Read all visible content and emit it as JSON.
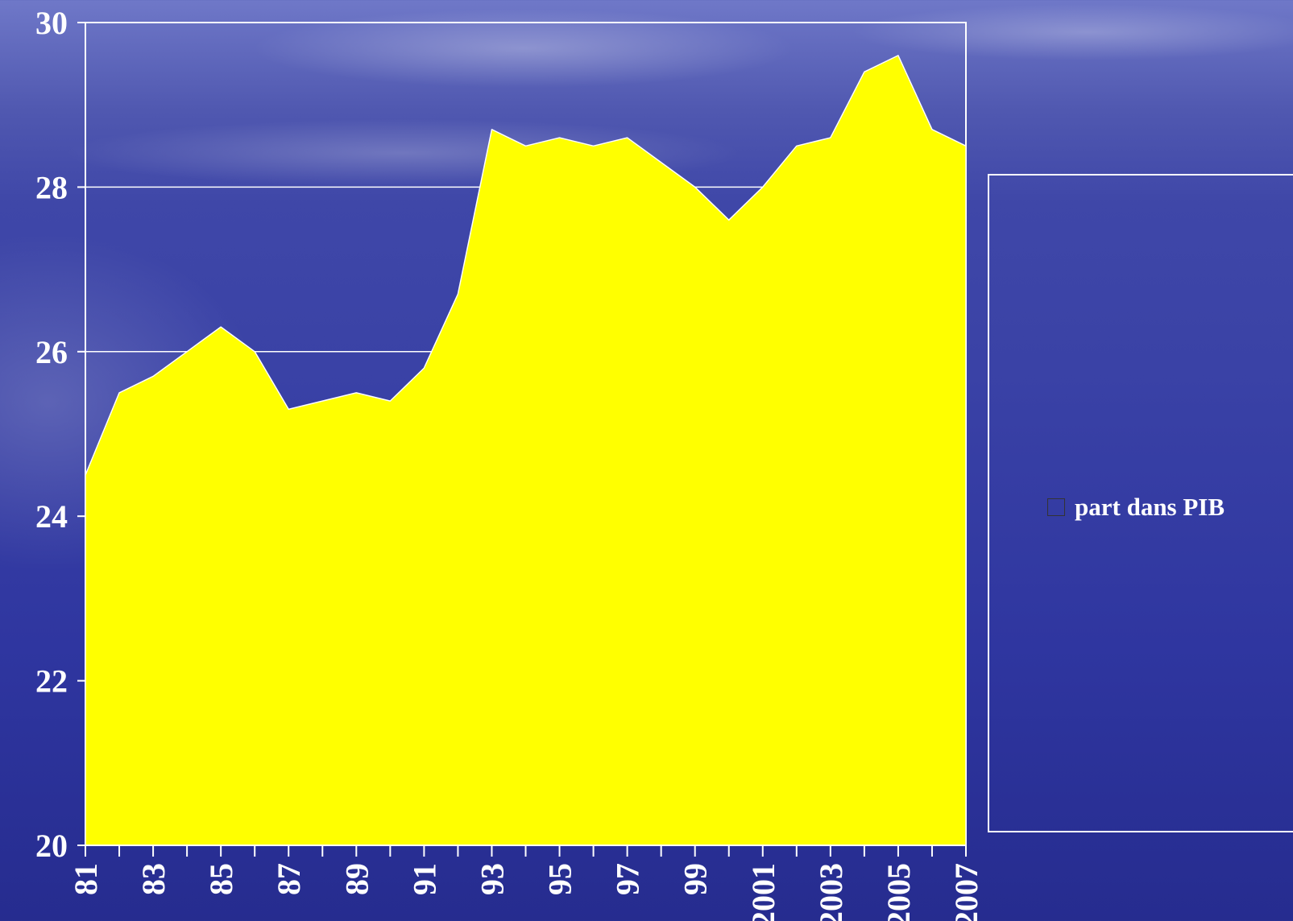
{
  "chart_data": {
    "type": "area",
    "x": [
      "81",
      "82",
      "83",
      "84",
      "85",
      "86",
      "87",
      "88",
      "89",
      "90",
      "91",
      "92",
      "93",
      "94",
      "95",
      "96",
      "97",
      "98",
      "99",
      "2000",
      "2001",
      "2002",
      "2003",
      "2004",
      "2005",
      "2006",
      "2007"
    ],
    "xtick_labels": [
      "81",
      "83",
      "85",
      "87",
      "89",
      "91",
      "93",
      "95",
      "97",
      "99",
      "2001",
      "2003",
      "2005",
      "2007"
    ],
    "series": [
      {
        "name": "part dans PIB",
        "color": "#ffff00",
        "values": [
          24.5,
          25.5,
          25.7,
          26.0,
          26.3,
          26.0,
          25.3,
          25.4,
          25.5,
          25.4,
          25.8,
          26.7,
          28.7,
          28.5,
          28.6,
          28.5,
          28.6,
          28.3,
          28.0,
          27.6,
          28.0,
          28.5,
          28.6,
          29.4,
          29.6,
          28.7,
          28.5
        ]
      }
    ],
    "ylim": [
      20,
      30
    ],
    "yticks": [
      20,
      22,
      24,
      26,
      28,
      30
    ],
    "title": "",
    "xlabel": "",
    "ylabel": "",
    "grid": true,
    "legend_position": "right"
  }
}
